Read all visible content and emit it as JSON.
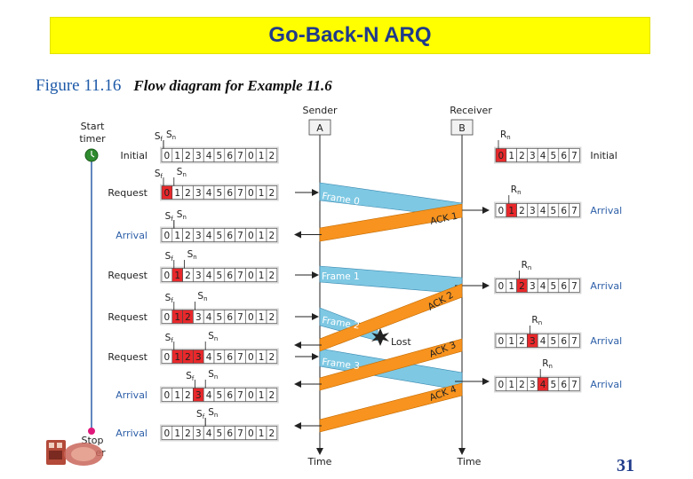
{
  "header": {
    "title": "Go-Back-N ARQ"
  },
  "figure": {
    "number": "Figure 11.16",
    "description": "Flow diagram for Example 11.6"
  },
  "page_number": "31",
  "diagram": {
    "sender_label": "Sender",
    "receiver_label": "Receiver",
    "sender_box": "A",
    "receiver_box": "B",
    "start_timer": [
      "Start",
      "timer"
    ],
    "stop_timer": [
      "Stop",
      "timer"
    ],
    "time_label": "Time",
    "lost_label": "Lost",
    "sf": "S",
    "sf_sub": "f",
    "sn": "S",
    "sn_sub": "n",
    "rn": "R",
    "rn_sub": "n",
    "sender_sequence": [
      "0",
      "1",
      "2",
      "3",
      "4",
      "5",
      "6",
      "7",
      "0",
      "1",
      "2"
    ],
    "receiver_sequence": [
      "0",
      "1",
      "2",
      "3",
      "4",
      "5",
      "6",
      "7"
    ],
    "sender_rows": [
      {
        "event": "Initial",
        "highlight": [],
        "event_color": "#222222"
      },
      {
        "event": "Request",
        "highlight": [
          0
        ],
        "event_color": "#222222"
      },
      {
        "event": "Arrival",
        "highlight": [],
        "event_color": "#2d5fa8"
      },
      {
        "event": "Request",
        "highlight": [
          1
        ],
        "event_color": "#222222"
      },
      {
        "event": "Request",
        "highlight": [
          1,
          2
        ],
        "event_color": "#222222"
      },
      {
        "event": "Request",
        "highlight": [
          1,
          2,
          3
        ],
        "event_color": "#222222"
      },
      {
        "event": "Arrival",
        "highlight": [
          3
        ],
        "event_color": "#2d5fa8"
      },
      {
        "event": "Arrival",
        "highlight": [],
        "event_color": "#2d5fa8"
      }
    ],
    "receiver_rows": [
      {
        "event": "Initial",
        "highlight": 0,
        "event_color": "#222222"
      },
      {
        "event": "Arrival",
        "highlight": 1,
        "event_color": "#2d5fa8"
      },
      {
        "event": "Arrival",
        "highlight": 2,
        "event_color": "#2d5fa8"
      },
      {
        "event": "Arrival",
        "highlight": 3,
        "event_color": "#2d5fa8"
      },
      {
        "event": "Arrival",
        "highlight": 4,
        "event_color": "#2d5fa8"
      }
    ],
    "frames": [
      "Frame 0",
      "Frame 1",
      "Frame 2",
      "Frame 3"
    ],
    "acks": [
      "ACK 1",
      "ACK 2",
      "ACK 3",
      "ACK 4"
    ],
    "colors": {
      "frame": "#7ec8e3",
      "ack": "#f7931e",
      "highlight": "#e8282b",
      "timer": "#2e8b2e",
      "stop": "#e0177a"
    }
  }
}
